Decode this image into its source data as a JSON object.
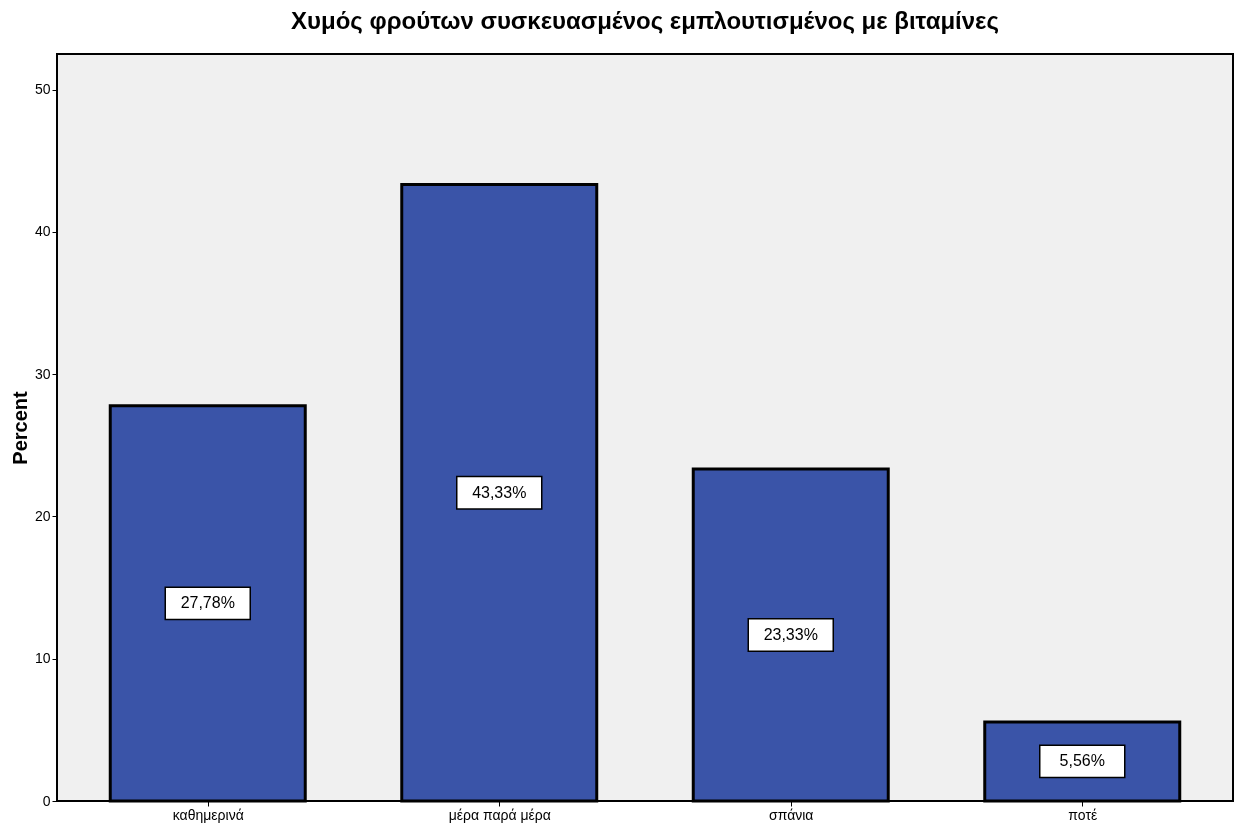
{
  "chart_data": {
    "type": "bar",
    "title": "Χυμός φρούτων συσκευασμένος εμπλουτισμένος με βιταμίνες",
    "ylabel": "Percent",
    "categories": [
      "καθημερινά",
      "μέρα παρά μέρα",
      "σπάνια",
      "ποτέ"
    ],
    "values": [
      27.78,
      43.33,
      23.33,
      5.56
    ],
    "value_labels": [
      "27,78%",
      "43,33%",
      "23,33%",
      "5,56%"
    ],
    "color": "#3a54a8",
    "ylim": [
      0,
      52.5
    ],
    "yticks": [
      0,
      10,
      20,
      30,
      40,
      50
    ],
    "grid": false
  }
}
